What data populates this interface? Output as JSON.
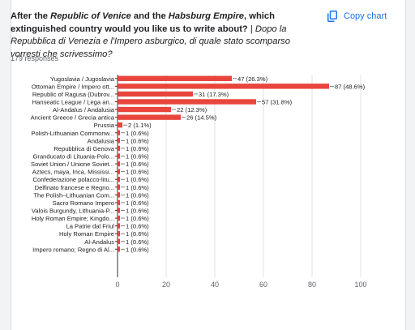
{
  "question": {
    "part1": "After the ",
    "venice": "Republic of Venice",
    "part2": " and the ",
    "habsburg": "Habsburg Empire",
    "part3": ", which extinguished country would you like us to write about?",
    "separator": " | ",
    "italian": "Dopo la Repubblica di Venezia e l'Impero asburgico, di quale stato scomparso vorresti che scrivessimo?"
  },
  "responses_label": "179 responses",
  "copy_chart_label": "Copy chart",
  "colors": {
    "bar": "#e8453c",
    "accent": "#1a73e8",
    "grid": "#e0e0e0"
  },
  "chart_data": {
    "type": "bar",
    "orientation": "horizontal",
    "total_responses": 179,
    "categories": [
      "Yugoslavia / Jugoslavia",
      "Ottoman Empire / Impero ott...",
      "Republic of Ragusa (Dubrov...",
      "Hanseatic League / Lega an...",
      "Al-Andalus / Andalusia",
      "Ancient Greece / Grecia antica",
      "Prussia",
      "Polish-Lithuanian Commonw...",
      "Andalusia",
      "Repubblica di Genova",
      "Granducato di Lituania-Polo...",
      "Soviet Union / Unione Soviet...",
      "Aztecs, maya, Inca, Mississi...",
      "Confederazione polacco-litu...",
      "Delfinato francese e Regno...",
      "The Polish–Lithuanian Com...",
      "Sacro Romano Impero",
      "Valois Burgundy, Lithuania-P...",
      "Holy Roman Empire; Kingdo...",
      "La Patrie dal Friul",
      "Holy Roman Empire",
      "Al-Andalus",
      "Impero romano; Regno di Al..."
    ],
    "values": [
      47,
      87,
      31,
      57,
      22,
      26,
      2,
      1,
      1,
      1,
      1,
      1,
      1,
      1,
      1,
      1,
      1,
      1,
      1,
      1,
      1,
      1,
      1
    ],
    "value_labels": [
      "47 (26.3%)",
      "87 (48.6%)",
      "31 (17.3%)",
      "57 (31.8%)",
      "22 (12.3%)",
      "26 (14.5%)",
      "2 (1.1%)",
      "1 (0.6%)",
      "1 (0.6%)",
      "1 (0.6%)",
      "1 (0.6%)",
      "1 (0.6%)",
      "1 (0.6%)",
      "1 (0.6%)",
      "1 (0.6%)",
      "1 (0.6%)",
      "1 (0.6%)",
      "1 (0.6%)",
      "1 (0.6%)",
      "1 (0.6%)",
      "1 (0.6%)",
      "1 (0.6%)",
      "1 (0.6%)"
    ],
    "xlim": [
      0,
      100
    ],
    "xticks": [
      0,
      20,
      40,
      60,
      80,
      100
    ],
    "grid": true
  }
}
